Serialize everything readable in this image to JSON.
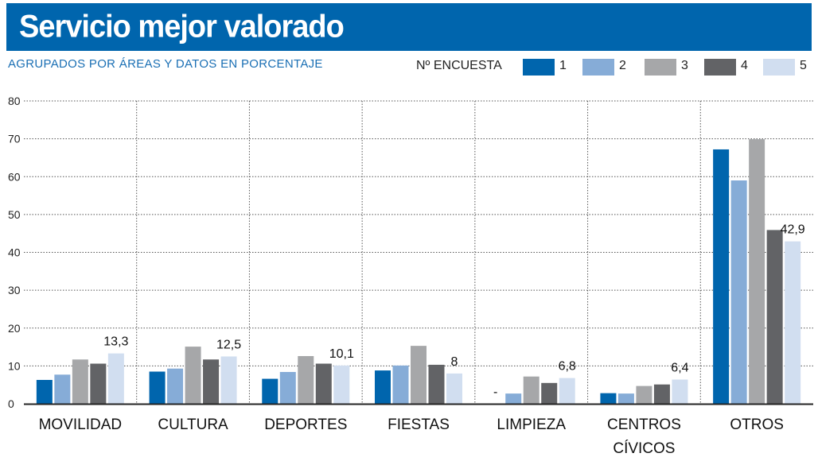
{
  "header": {
    "title": "Servicio mejor valorado"
  },
  "subtitle": "AGRUPADOS POR ÁREAS Y DATOS EN PORCENTAJE",
  "legend": {
    "title": "Nº ENCUESTA",
    "items": [
      {
        "label": "1",
        "color": "#0065ad"
      },
      {
        "label": "2",
        "color": "#86acd7"
      },
      {
        "label": "3",
        "color": "#a6a7a9"
      },
      {
        "label": "4",
        "color": "#626366"
      },
      {
        "label": "5",
        "color": "#d1def0"
      }
    ]
  },
  "chart_data": {
    "type": "bar",
    "title": "Servicio mejor valorado",
    "subtitle": "AGRUPADOS POR ÁREAS Y DATOS EN PORCENTAJE",
    "xlabel": "",
    "ylabel": "",
    "ylim": [
      0,
      80
    ],
    "yticks": [
      "0",
      "10",
      "20",
      "30",
      "40",
      "50",
      "60",
      "70",
      "80"
    ],
    "grid": true,
    "legend_position": "top-right",
    "categories": [
      {
        "lines": [
          "MOVILIDAD"
        ]
      },
      {
        "lines": [
          "CULTURA"
        ]
      },
      {
        "lines": [
          "DEPORTES"
        ]
      },
      {
        "lines": [
          "FIESTAS"
        ]
      },
      {
        "lines": [
          "LIMPIEZA"
        ]
      },
      {
        "lines": [
          "CENTROS",
          "CÍVICOS"
        ]
      },
      {
        "lines": [
          "OTROS"
        ]
      }
    ],
    "series": [
      {
        "name": "1",
        "values": [
          6.3,
          8.5,
          6.6,
          8.8,
          null,
          2.8,
          67.2
        ]
      },
      {
        "name": "2",
        "values": [
          7.7,
          9.3,
          8.4,
          10.1,
          2.7,
          2.7,
          59.0
        ]
      },
      {
        "name": "3",
        "values": [
          11.7,
          15.1,
          12.6,
          15.3,
          7.2,
          4.7,
          69.9
        ]
      },
      {
        "name": "4",
        "values": [
          10.6,
          11.7,
          10.6,
          10.3,
          5.5,
          5.1,
          45.9
        ]
      },
      {
        "name": "5",
        "values": [
          13.3,
          12.5,
          10.1,
          8.0,
          6.8,
          6.4,
          42.9
        ]
      }
    ],
    "data_labels": [
      {
        "category": 0,
        "series": 4,
        "text": "13,3"
      },
      {
        "category": 1,
        "series": 4,
        "text": "12,5"
      },
      {
        "category": 2,
        "series": 4,
        "text": "10,1"
      },
      {
        "category": 3,
        "series": 4,
        "text": "8"
      },
      {
        "category": 4,
        "series": 0,
        "text": "-"
      },
      {
        "category": 4,
        "series": 4,
        "text": "6,8"
      },
      {
        "category": 5,
        "series": 4,
        "text": "6,4"
      },
      {
        "category": 6,
        "series": 4,
        "text": "42,9"
      }
    ]
  }
}
